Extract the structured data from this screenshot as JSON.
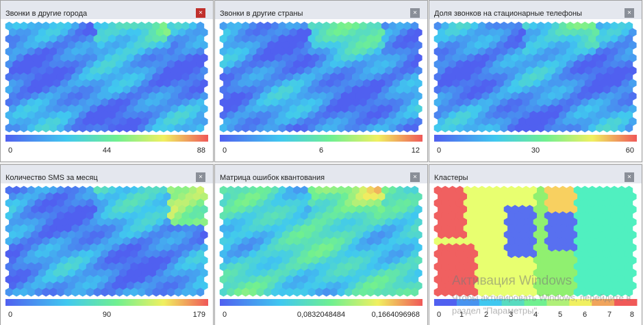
{
  "panels": [
    {
      "title": "Звонки в другие города",
      "scale": [
        "0",
        "44",
        "88"
      ]
    },
    {
      "title": "Звонки в другие страны",
      "scale": [
        "0",
        "6",
        "12"
      ]
    },
    {
      "title": "Доля звонков на стационарные телефоны",
      "scale": [
        "0",
        "30",
        "60"
      ]
    },
    {
      "title": "Количество SMS за месяц",
      "scale": [
        "0",
        "90",
        "179"
      ]
    },
    {
      "title": "Матрица ошибок квантования",
      "scale": [
        "0",
        "0,0832048484",
        "0,1664096968"
      ]
    },
    {
      "title": "Кластеры",
      "scale": [
        "0",
        "1",
        "2",
        "3",
        "4",
        "5",
        "6",
        "7",
        "8"
      ]
    }
  ],
  "watermark": {
    "title": "Активация Windows",
    "line1": "Чтобы активировать Windows, перейдите в",
    "line2": "раздел \"Параметры\"."
  }
}
